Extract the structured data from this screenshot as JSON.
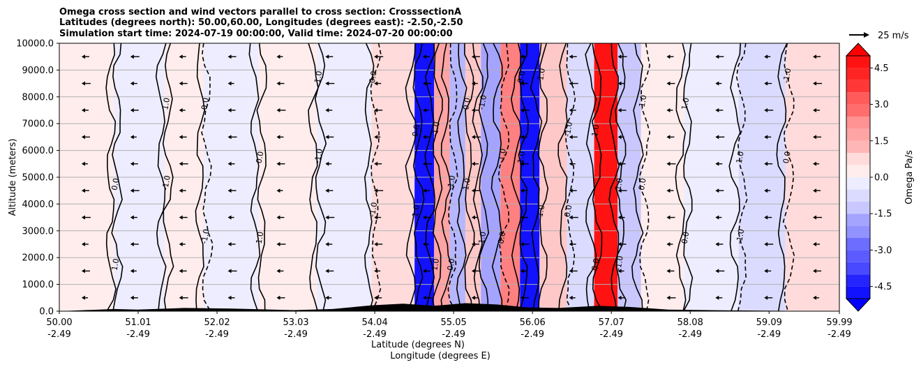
{
  "chart_data": {
    "type": "heatmap",
    "title_lines": [
      "Omega cross section and wind vectors parallel to cross section: CrosssectionA",
      "Latitudes (degrees north): 50.00,60.00, Longitudes (degrees east): -2.50,-2.50",
      "Simulation start time: 2024-07-19 00:00:00, Valid time: 2024-07-20 00:00:00"
    ],
    "ylabel": "Altitude (meters)",
    "xlabel_lat": "Latitude (degrees N)",
    "xlabel_lon": "Longitude (degrees E)",
    "ylim": [
      0,
      10000
    ],
    "yticks": [
      "0.0",
      "1000.0",
      "2000.0",
      "3000.0",
      "4000.0",
      "5000.0",
      "6000.0",
      "7000.0",
      "8000.0",
      "9000.0",
      "10000.0"
    ],
    "xlim": [
      50.0,
      59.99
    ],
    "xticks": [
      {
        "lat": "50.00",
        "lon": "-2.49"
      },
      {
        "lat": "51.01",
        "lon": "-2.49"
      },
      {
        "lat": "52.02",
        "lon": "-2.49"
      },
      {
        "lat": "53.03",
        "lon": "-2.49"
      },
      {
        "lat": "54.04",
        "lon": "-2.49"
      },
      {
        "lat": "55.05",
        "lon": "-2.49"
      },
      {
        "lat": "56.06",
        "lon": "-2.49"
      },
      {
        "lat": "57.07",
        "lon": "-2.49"
      },
      {
        "lat": "58.08",
        "lon": "-2.49"
      },
      {
        "lat": "59.09",
        "lon": "-2.49"
      },
      {
        "lat": "59.99",
        "lon": "-2.49"
      }
    ],
    "grid": "horizontal",
    "colorbar": {
      "label": "Omega Pa/s",
      "range": [
        -5.0,
        5.0
      ],
      "ticks": [
        "-4.5",
        "-3.0",
        "-1.5",
        "0.0",
        "1.5",
        "3.0",
        "4.5"
      ],
      "extend": "both",
      "colormap": "bwr"
    },
    "quiver_key": "25 m/s",
    "contour_levels": [
      "-1.0",
      "0.0",
      "1.0"
    ],
    "omega_bands": [
      {
        "lat": 50.3,
        "omega": 0.3
      },
      {
        "lat": 51.1,
        "omega": -0.4
      },
      {
        "lat": 51.6,
        "omega": 0.4
      },
      {
        "lat": 52.1,
        "omega": -0.3
      },
      {
        "lat": 53.0,
        "omega": 0.2
      },
      {
        "lat": 53.6,
        "omega": -0.3
      },
      {
        "lat": 54.4,
        "omega": 0.6
      },
      {
        "lat": 54.7,
        "omega": -4.8
      },
      {
        "lat": 54.9,
        "omega": 1.8
      },
      {
        "lat": 55.1,
        "omega": -1.6
      },
      {
        "lat": 55.3,
        "omega": 1.2
      },
      {
        "lat": 55.5,
        "omega": -1.8
      },
      {
        "lat": 55.8,
        "omega": 2.5
      },
      {
        "lat": 56.0,
        "omega": -4.5
      },
      {
        "lat": 56.3,
        "omega": 0.9
      },
      {
        "lat": 56.7,
        "omega": -0.8
      },
      {
        "lat": 57.0,
        "omega": 4.8
      },
      {
        "lat": 57.3,
        "omega": -1.2
      },
      {
        "lat": 57.6,
        "omega": 0.5
      },
      {
        "lat": 58.4,
        "omega": -0.3
      },
      {
        "lat": 59.0,
        "omega": -0.8
      },
      {
        "lat": 59.6,
        "omega": 0.6
      }
    ],
    "wind_direction": "westward"
  },
  "colors": {
    "accent_red": "#ff0000",
    "accent_blue": "#0000ff"
  }
}
